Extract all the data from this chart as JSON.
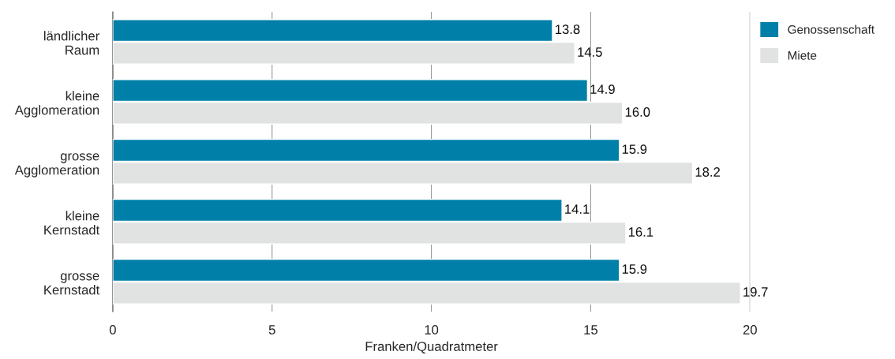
{
  "chart_data": {
    "type": "bar",
    "orientation": "horizontal",
    "xlabel": "Franken/Quadratmeter",
    "categories": [
      "ländlicher\nRaum",
      "kleine\nAgglomeration",
      "grosse\nAgglomeration",
      "kleine\nKernstadt",
      "grosse\nKernstadt"
    ],
    "series": [
      {
        "name": "Genossenschaft",
        "color": "#0080a8",
        "values": [
          13.8,
          14.9,
          15.9,
          14.1,
          15.9
        ],
        "value_labels": [
          "13.8",
          "14.9",
          "15.9",
          "14.1",
          "15.9"
        ]
      },
      {
        "name": "Miete",
        "color": "#e1e2e2",
        "values": [
          14.5,
          16.0,
          18.2,
          16.1,
          19.7
        ],
        "value_labels": [
          "14.5",
          "16.0",
          "18.2",
          "16.1",
          "19.7"
        ]
      }
    ],
    "xlim": [
      0,
      20
    ],
    "xticks": [
      0,
      5,
      10,
      15,
      20
    ],
    "grid": "x",
    "legend": "top right"
  }
}
